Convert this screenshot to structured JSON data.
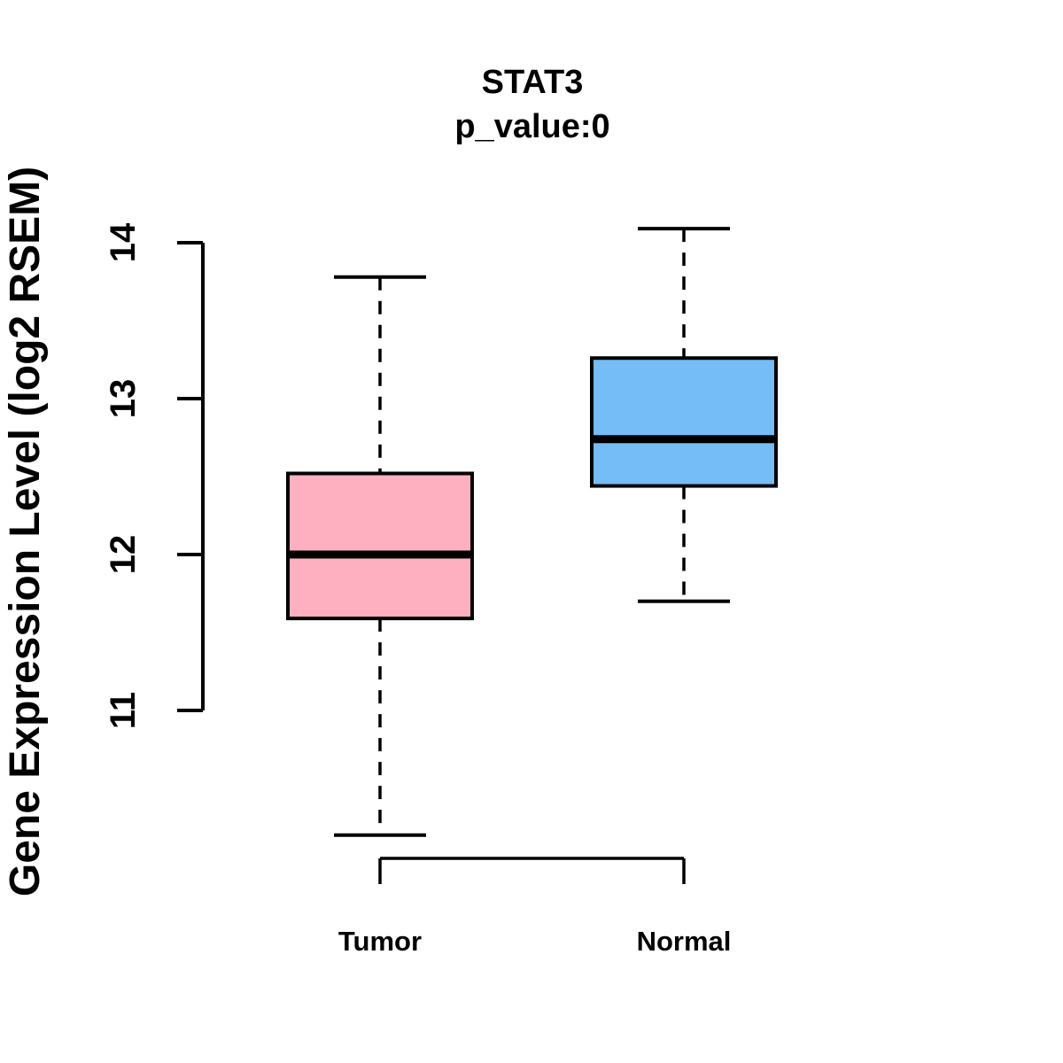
{
  "title": "STAT3",
  "subtitle": "p_value:0",
  "y_axis": {
    "label": "Gene Expression Level (log2 RSEM)",
    "ticks": [
      "11",
      "12",
      "13",
      "14"
    ]
  },
  "x_axis": {
    "categories": [
      "Tumor",
      "Normal"
    ]
  },
  "colors": {
    "tumor_box_fill": "#FFB0C0",
    "normal_box_fill": "#74BDF6",
    "line": "#000000",
    "background": "#FFFFFF"
  },
  "chart_data": {
    "type": "boxplot",
    "title": "STAT3",
    "subtitle": "p_value:0",
    "ylabel": "Gene Expression Level (log2 RSEM)",
    "xlabel": "",
    "categories": [
      "Tumor",
      "Normal"
    ],
    "y_tick_values": [
      11,
      12,
      13,
      14
    ],
    "axis_value_range": [
      11,
      14
    ],
    "grid": false,
    "legend": false,
    "whisker_style": "dashed",
    "series": [
      {
        "name": "Tumor",
        "whisker_low": 10.2,
        "q1": 11.59,
        "median": 12.0,
        "q3": 12.52,
        "whisker_high": 13.78,
        "fill_color": "#FFB0C0"
      },
      {
        "name": "Normal",
        "whisker_low": 11.7,
        "q1": 12.44,
        "median": 12.74,
        "q3": 13.26,
        "whisker_high": 14.09,
        "fill_color": "#74BDF6"
      }
    ]
  }
}
